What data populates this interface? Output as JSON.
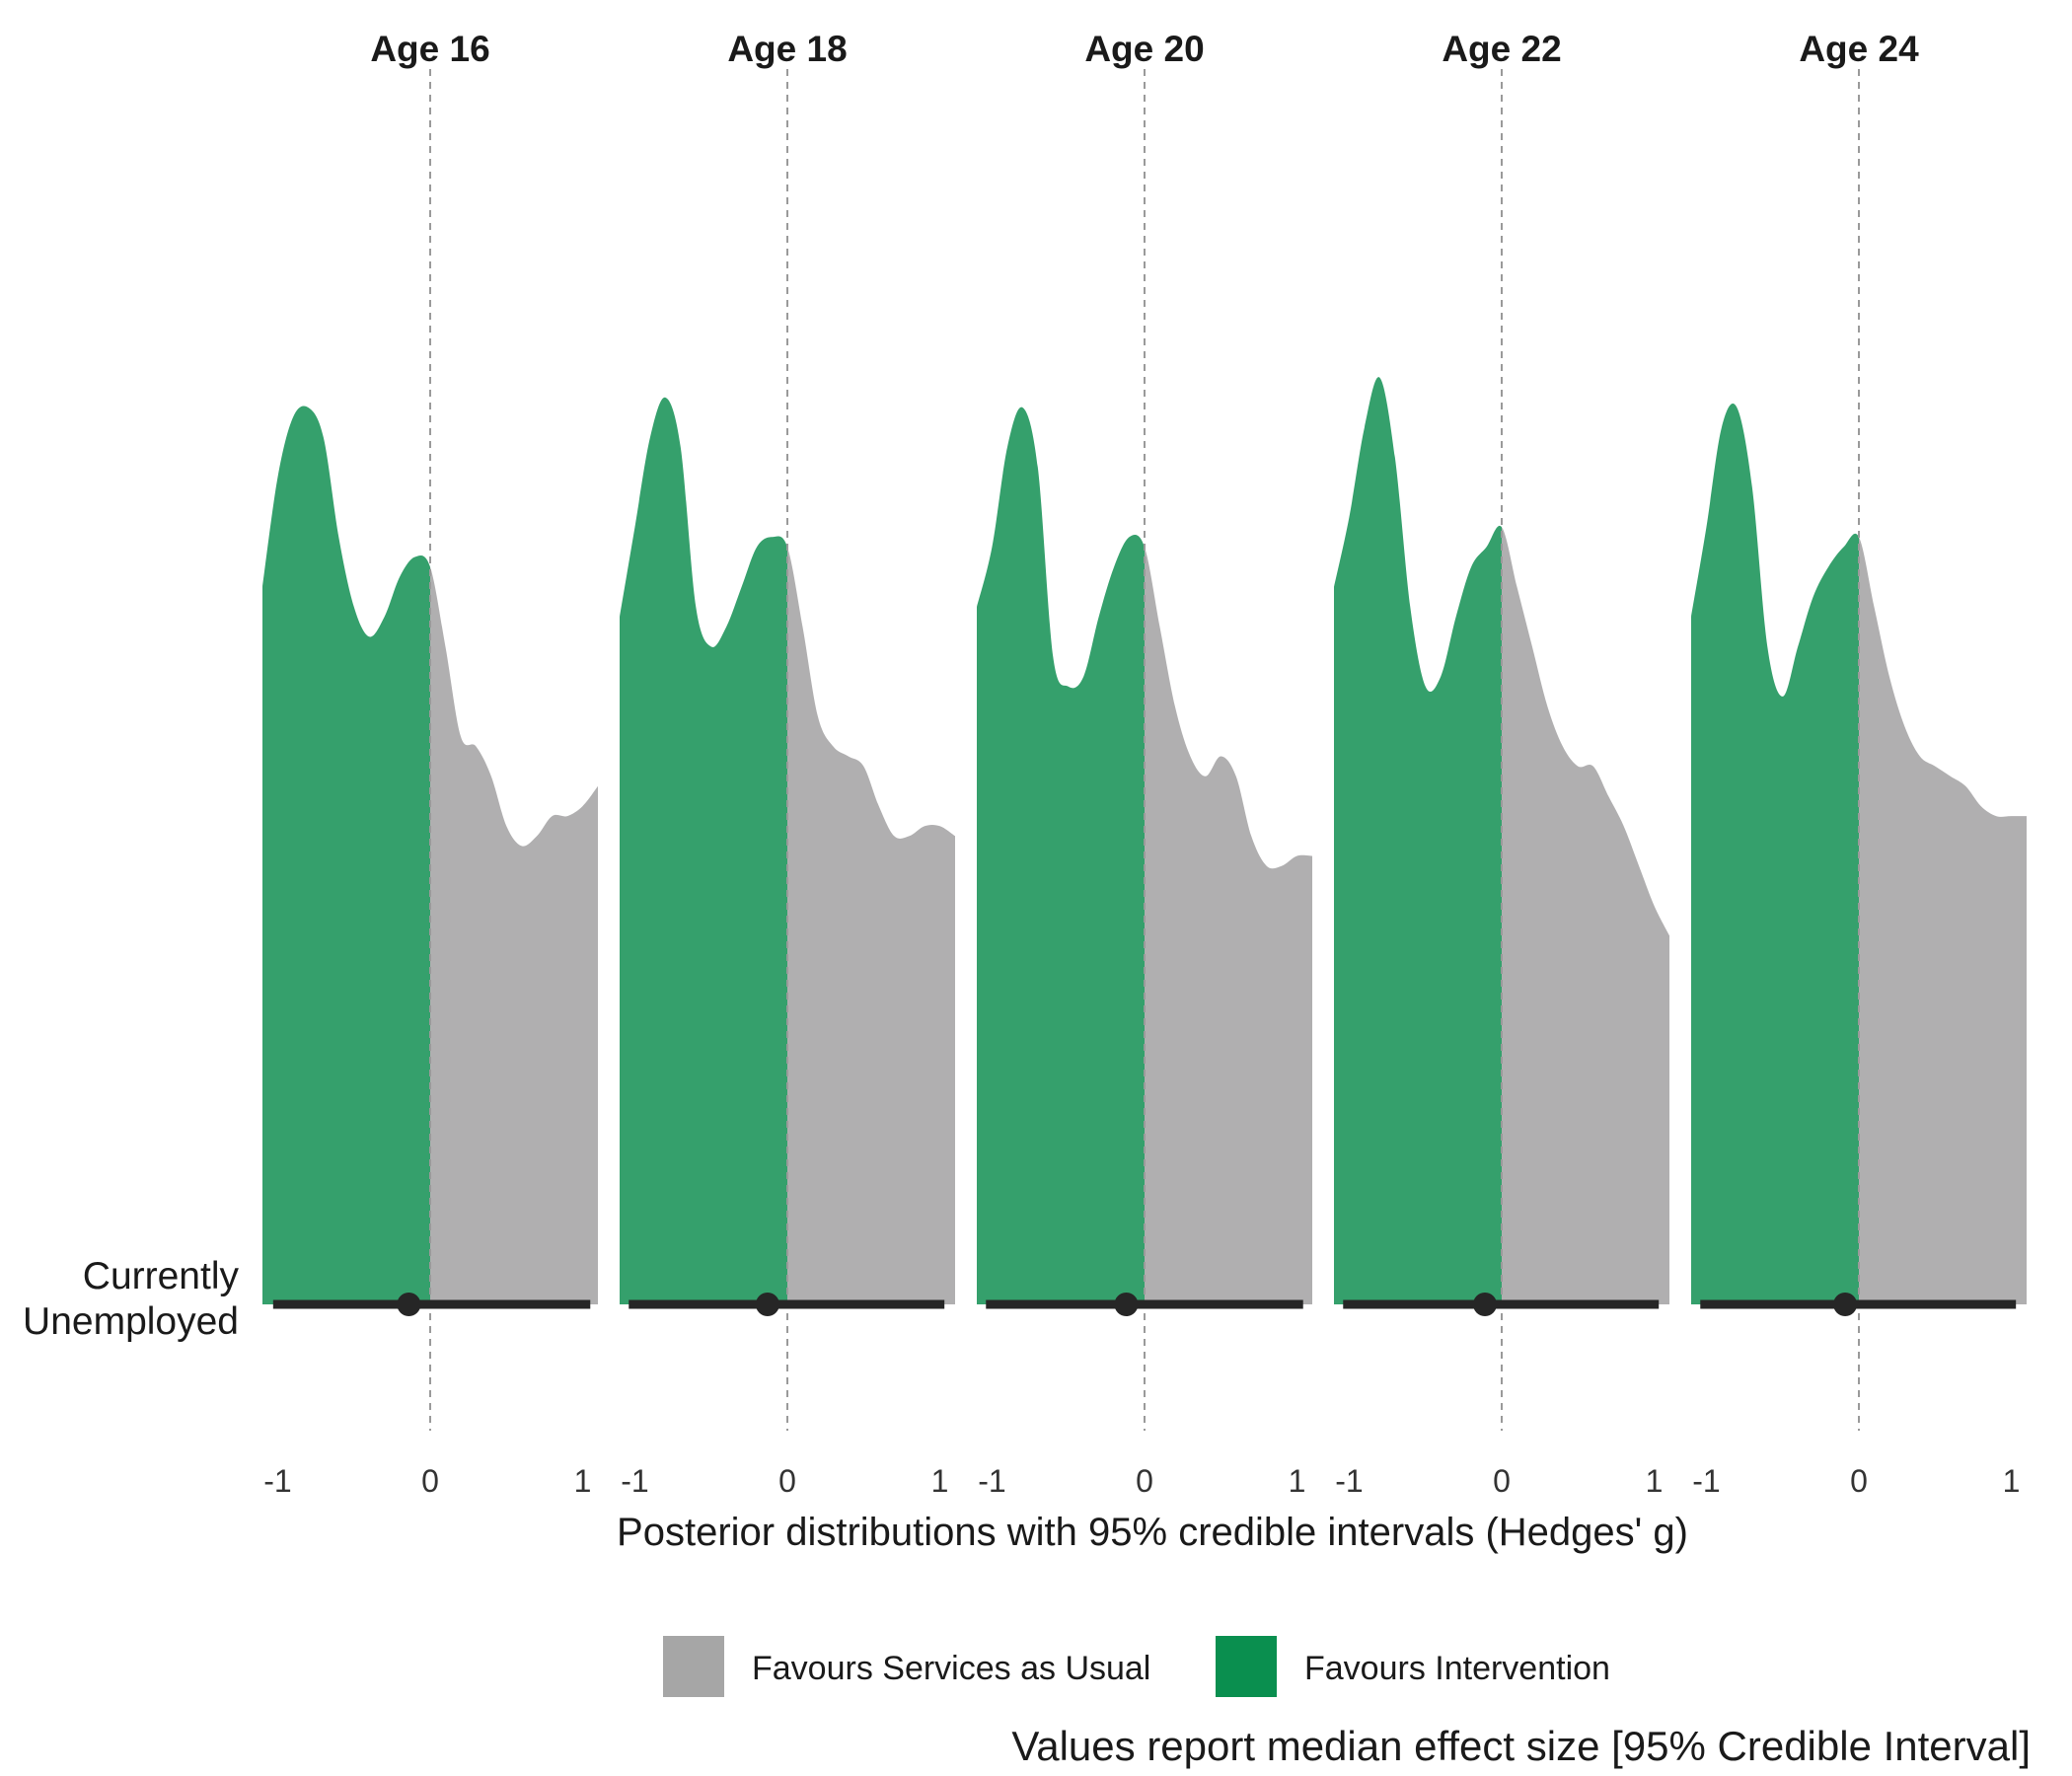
{
  "chart_data": {
    "type": "area",
    "facets": [
      "Age 16",
      "Age 18",
      "Age 20",
      "Age 22",
      "Age 24"
    ],
    "row_label": [
      "Currently",
      "Unemployed"
    ],
    "xlabel": "Posterior distributions with 95% credible intervals (Hedges' g)",
    "caption": "Values report median effect size [95% Credible Interval]",
    "xlim": [
      -1.1,
      1.1
    ],
    "x_ticks": [
      -1,
      0,
      1
    ],
    "x_tick_labels": [
      "-1",
      "0",
      "1"
    ],
    "reference_line_x": 0,
    "legend": [
      {
        "label": "Favours Services as Usual",
        "color": "#a6a6a6"
      },
      {
        "label": "Favours Intervention",
        "color": "#0a8f4f"
      }
    ],
    "colors": {
      "intervention_fill": "#35a06c",
      "services_fill": "#b0afb0",
      "interval": "#262626"
    },
    "panels": [
      {
        "name": "Age 16",
        "median": -0.14,
        "ci": [
          -1.03,
          1.05
        ],
        "density": [
          [
            -1.1,
            0.72
          ],
          [
            -1.0,
            0.83
          ],
          [
            -0.9,
            0.89
          ],
          [
            -0.8,
            0.9
          ],
          [
            -0.7,
            0.87
          ],
          [
            -0.6,
            0.77
          ],
          [
            -0.5,
            0.7
          ],
          [
            -0.4,
            0.67
          ],
          [
            -0.3,
            0.69
          ],
          [
            -0.2,
            0.73
          ],
          [
            -0.1,
            0.75
          ],
          [
            0.0,
            0.74
          ],
          [
            0.1,
            0.66
          ],
          [
            0.2,
            0.57
          ],
          [
            0.3,
            0.56
          ],
          [
            0.4,
            0.53
          ],
          [
            0.5,
            0.48
          ],
          [
            0.6,
            0.46
          ],
          [
            0.7,
            0.47
          ],
          [
            0.8,
            0.49
          ],
          [
            0.9,
            0.49
          ],
          [
            1.0,
            0.5
          ],
          [
            1.1,
            0.52
          ]
        ]
      },
      {
        "name": "Age 18",
        "median": -0.13,
        "ci": [
          -1.04,
          1.03
        ],
        "density": [
          [
            -1.1,
            0.69
          ],
          [
            -1.0,
            0.78
          ],
          [
            -0.9,
            0.87
          ],
          [
            -0.8,
            0.91
          ],
          [
            -0.7,
            0.86
          ],
          [
            -0.6,
            0.7
          ],
          [
            -0.5,
            0.66
          ],
          [
            -0.4,
            0.68
          ],
          [
            -0.3,
            0.72
          ],
          [
            -0.2,
            0.76
          ],
          [
            -0.1,
            0.77
          ],
          [
            0.0,
            0.76
          ],
          [
            0.1,
            0.68
          ],
          [
            0.2,
            0.59
          ],
          [
            0.3,
            0.56
          ],
          [
            0.4,
            0.55
          ],
          [
            0.5,
            0.54
          ],
          [
            0.6,
            0.5
          ],
          [
            0.7,
            0.47
          ],
          [
            0.8,
            0.47
          ],
          [
            0.9,
            0.48
          ],
          [
            1.0,
            0.48
          ],
          [
            1.1,
            0.47
          ]
        ]
      },
      {
        "name": "Age 20",
        "median": -0.12,
        "ci": [
          -1.04,
          1.04
        ],
        "density": [
          [
            -1.1,
            0.7
          ],
          [
            -1.0,
            0.76
          ],
          [
            -0.9,
            0.86
          ],
          [
            -0.8,
            0.9
          ],
          [
            -0.7,
            0.84
          ],
          [
            -0.6,
            0.65
          ],
          [
            -0.5,
            0.62
          ],
          [
            -0.4,
            0.63
          ],
          [
            -0.3,
            0.69
          ],
          [
            -0.2,
            0.74
          ],
          [
            -0.1,
            0.77
          ],
          [
            0.0,
            0.76
          ],
          [
            0.1,
            0.68
          ],
          [
            0.2,
            0.6
          ],
          [
            0.3,
            0.55
          ],
          [
            0.4,
            0.53
          ],
          [
            0.5,
            0.55
          ],
          [
            0.6,
            0.53
          ],
          [
            0.7,
            0.47
          ],
          [
            0.8,
            0.44
          ],
          [
            0.9,
            0.44
          ],
          [
            1.0,
            0.45
          ],
          [
            1.1,
            0.45
          ]
        ]
      },
      {
        "name": "Age 22",
        "median": -0.11,
        "ci": [
          -1.04,
          1.03
        ],
        "density": [
          [
            -1.1,
            0.72
          ],
          [
            -1.0,
            0.79
          ],
          [
            -0.9,
            0.88
          ],
          [
            -0.8,
            0.93
          ],
          [
            -0.7,
            0.85
          ],
          [
            -0.6,
            0.7
          ],
          [
            -0.5,
            0.62
          ],
          [
            -0.4,
            0.63
          ],
          [
            -0.3,
            0.69
          ],
          [
            -0.2,
            0.74
          ],
          [
            -0.1,
            0.76
          ],
          [
            0.0,
            0.78
          ],
          [
            0.1,
            0.72
          ],
          [
            0.2,
            0.66
          ],
          [
            0.3,
            0.6
          ],
          [
            0.4,
            0.56
          ],
          [
            0.5,
            0.54
          ],
          [
            0.6,
            0.54
          ],
          [
            0.7,
            0.51
          ],
          [
            0.8,
            0.48
          ],
          [
            0.9,
            0.44
          ],
          [
            1.0,
            0.4
          ],
          [
            1.1,
            0.37
          ]
        ]
      },
      {
        "name": "Age 24",
        "median": -0.09,
        "ci": [
          -1.04,
          1.03
        ],
        "density": [
          [
            -1.1,
            0.69
          ],
          [
            -1.0,
            0.78
          ],
          [
            -0.9,
            0.88
          ],
          [
            -0.8,
            0.9
          ],
          [
            -0.7,
            0.82
          ],
          [
            -0.6,
            0.66
          ],
          [
            -0.5,
            0.61
          ],
          [
            -0.4,
            0.66
          ],
          [
            -0.3,
            0.71
          ],
          [
            -0.2,
            0.74
          ],
          [
            -0.1,
            0.76
          ],
          [
            0.0,
            0.77
          ],
          [
            0.1,
            0.7
          ],
          [
            0.2,
            0.63
          ],
          [
            0.3,
            0.58
          ],
          [
            0.4,
            0.55
          ],
          [
            0.5,
            0.54
          ],
          [
            0.6,
            0.53
          ],
          [
            0.7,
            0.52
          ],
          [
            0.8,
            0.5
          ],
          [
            0.9,
            0.49
          ],
          [
            1.0,
            0.49
          ],
          [
            1.1,
            0.49
          ]
        ]
      }
    ]
  }
}
